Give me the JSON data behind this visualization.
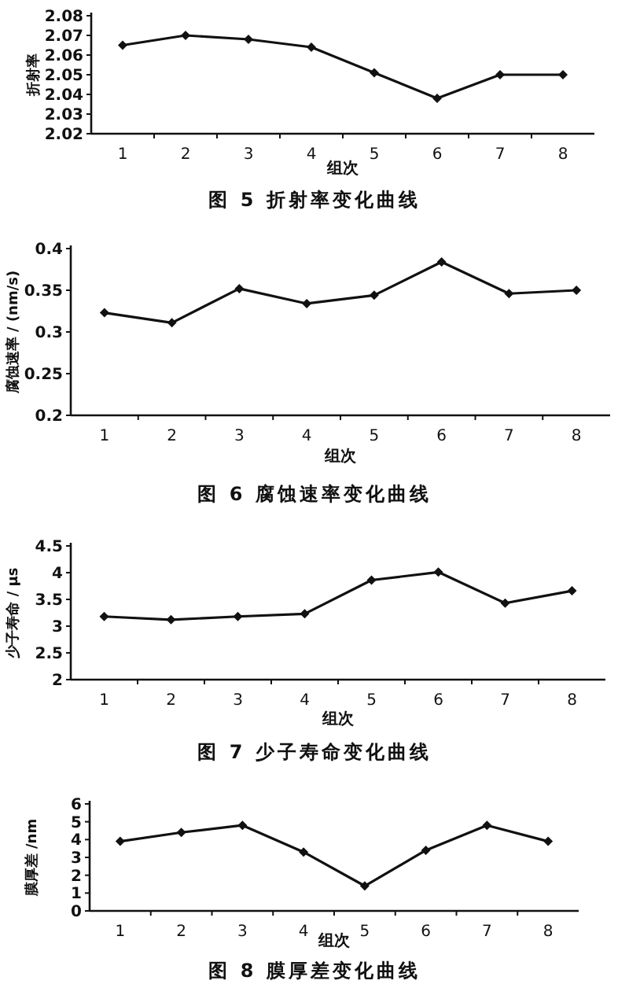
{
  "chart_data": [
    {
      "type": "line",
      "title": "图 5  折射率变化曲线",
      "xlabel": "组次",
      "ylabel": "折射率",
      "categories": [
        "1",
        "2",
        "3",
        "4",
        "5",
        "6",
        "7",
        "8"
      ],
      "values": [
        2.065,
        2.07,
        2.068,
        2.064,
        2.051,
        2.038,
        2.05,
        2.05
      ],
      "color": "#111111",
      "marker": "diamond",
      "ylim": [
        2.02,
        2.08
      ],
      "yticks": [
        2.02,
        2.03,
        2.04,
        2.05,
        2.06,
        2.07,
        2.08
      ]
    },
    {
      "type": "line",
      "title": "图 6  腐蚀速率变化曲线",
      "xlabel": "组次",
      "ylabel": "腐蚀速率 / (nm/s)",
      "categories": [
        "1",
        "2",
        "3",
        "4",
        "5",
        "6",
        "7",
        "8"
      ],
      "values": [
        0.323,
        0.311,
        0.352,
        0.334,
        0.344,
        0.384,
        0.346,
        0.35
      ],
      "color": "#111111",
      "marker": "diamond",
      "ylim": [
        0.2,
        0.4
      ],
      "yticks": [
        0.2,
        0.25,
        0.3,
        0.35,
        0.4
      ]
    },
    {
      "type": "line",
      "title": "图 7  少子寿命变化曲线",
      "xlabel": "组次",
      "ylabel": "少子寿命 / μs",
      "categories": [
        "1",
        "2",
        "3",
        "4",
        "5",
        "6",
        "7",
        "8"
      ],
      "values": [
        3.18,
        3.12,
        3.18,
        3.23,
        3.86,
        4.01,
        3.43,
        3.66
      ],
      "color": "#111111",
      "marker": "diamond",
      "ylim": [
        2,
        4.5
      ],
      "yticks": [
        2,
        2.5,
        3,
        3.5,
        4,
        4.5
      ]
    },
    {
      "type": "line",
      "title": "图 8  膜厚差变化曲线",
      "xlabel": "组次",
      "ylabel": "膜厚差 /nm",
      "categories": [
        "1",
        "2",
        "3",
        "4",
        "5",
        "6",
        "7",
        "8"
      ],
      "values": [
        3.9,
        4.4,
        4.8,
        3.3,
        1.4,
        3.4,
        4.8,
        3.9
      ],
      "color": "#111111",
      "marker": "diamond",
      "ylim": [
        0,
        6
      ],
      "yticks": [
        0,
        1,
        2,
        3,
        4,
        5,
        6
      ]
    }
  ]
}
